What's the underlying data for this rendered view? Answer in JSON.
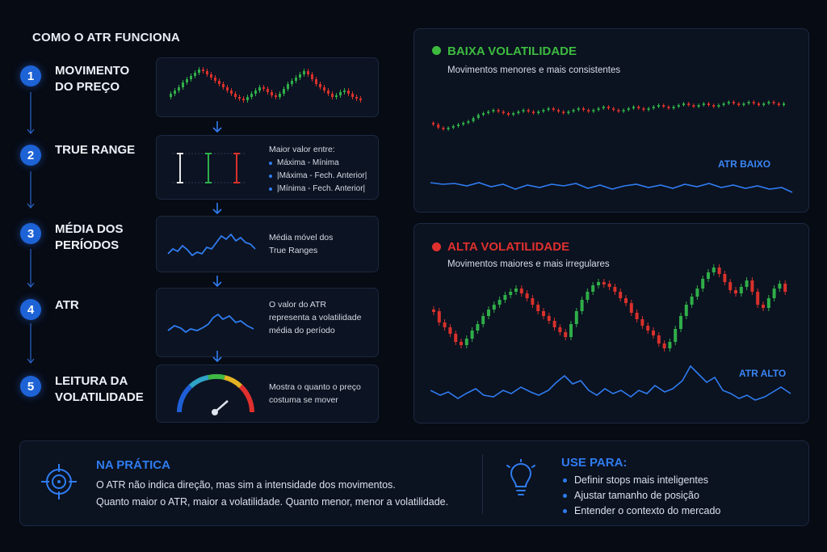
{
  "title": "COMO O ATR FUNCIONA",
  "steps": [
    {
      "num": "1",
      "name": "MOVIMENTO\nDO PREÇO"
    },
    {
      "num": "2",
      "name": "TRUE RANGE",
      "note_title": "Maior valor entre:",
      "bullets": [
        "Máxima - Mínima",
        "|Máxima - Fech. Anterior|",
        "|Mínima - Fech. Anterior|"
      ]
    },
    {
      "num": "3",
      "name": "MÉDIA DOS\nPERÍODOS",
      "note": "Média móvel dos\nTrue Ranges"
    },
    {
      "num": "4",
      "name": "ATR",
      "note": "O valor do ATR\nrepresenta a volatilidade\nmédia do período"
    },
    {
      "num": "5",
      "name": "LEITURA DA\nVOLATILIDADE",
      "note": "Mostra o quanto o preço\ncostuma se mover"
    }
  ],
  "low": {
    "title": "BAIXA VOLATILIDADE",
    "subtitle": "Movimentos menores e mais consistentes",
    "atr_label": "ATR BAIXO",
    "dot_color": "#3dbb3f"
  },
  "high": {
    "title": "ALTA VOLATILIDADE",
    "subtitle": "Movimentos maiores e mais irregulares",
    "atr_label": "ATR ALTO",
    "dot_color": "#e0302e"
  },
  "practice": {
    "title": "NA PRÁTICA",
    "line1": "O ATR não indica direção, mas sim a intensidade dos movimentos.",
    "line2": "Quanto maior o ATR, maior a volatilidade. Quanto menor, menor a volatilidade."
  },
  "use": {
    "title": "USE PARA:",
    "items": [
      "Definir stops mais inteligentes",
      "Ajustar tamanho de posição",
      "Entender o contexto do mercado"
    ]
  },
  "colors": {
    "up": "#2fae48",
    "down": "#d8312b",
    "accent": "#2f7cf0"
  },
  "icons": [
    "target-icon",
    "lightbulb-icon",
    "gauge-icon",
    "arrow-down-icon"
  ]
}
